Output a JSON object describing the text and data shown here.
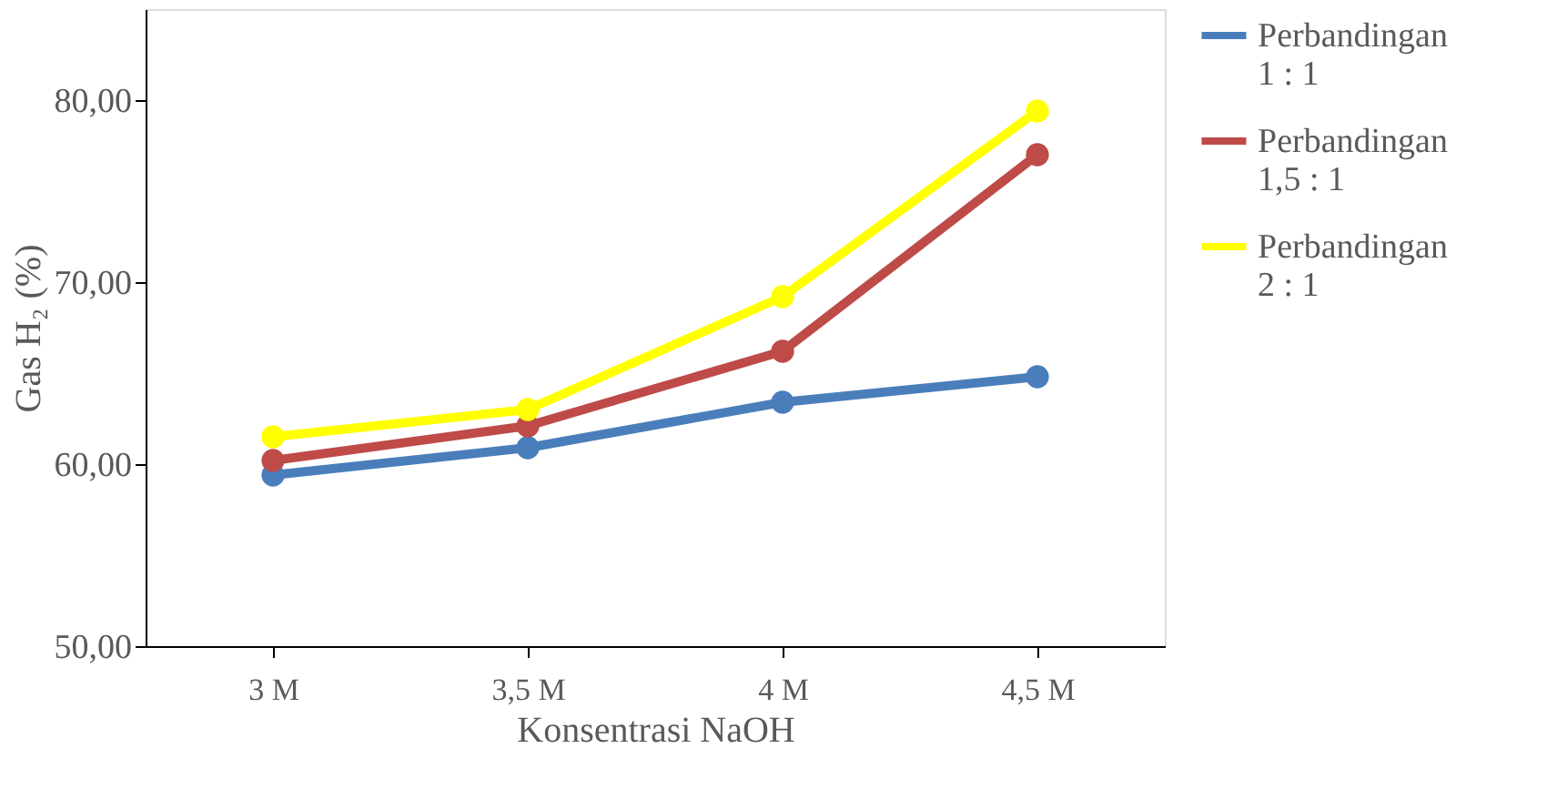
{
  "chart_data": {
    "type": "line",
    "xlabel": "Konsentrasi NaOH",
    "ylabel": "Gas H₂ (%)",
    "categories": [
      "3 M",
      "3,5 M",
      "4 M",
      "4,5 M"
    ],
    "series": [
      {
        "name": "Perbandingan 1 : 1",
        "color": "#4a7ebb",
        "values": [
          59.4,
          60.9,
          63.4,
          64.8
        ]
      },
      {
        "name": "Perbandingan 1,5 : 1",
        "color": "#be4b48",
        "values": [
          60.2,
          62.1,
          66.2,
          77.0
        ]
      },
      {
        "name": "Perbandingan 2 : 1",
        "color": "#ffff00",
        "values": [
          61.5,
          63.0,
          69.2,
          79.4
        ]
      }
    ],
    "ylim": [
      50,
      85
    ],
    "yticks": [
      {
        "value": 50,
        "label": "50,00"
      },
      {
        "value": 60,
        "label": "60,00"
      },
      {
        "value": 70,
        "label": "70,00"
      },
      {
        "value": 80,
        "label": "80,00"
      }
    ],
    "grid": false,
    "legend": "right",
    "marker": "circle",
    "line_style": "solid"
  }
}
